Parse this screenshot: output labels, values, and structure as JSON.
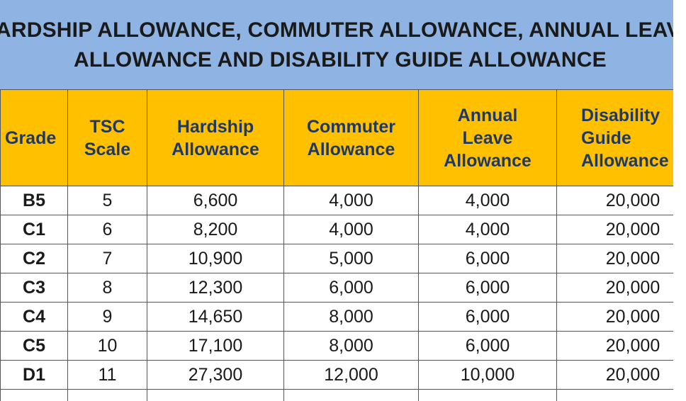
{
  "title": {
    "line1": "ARDSHIP ALLOWANCE, COMMUTER ALLOWANCE, ANNUAL LEAVE",
    "line2": "ALLOWANCE AND DISABILITY GUIDE ALLOWANCE"
  },
  "headers": {
    "grade": "Grade",
    "scale": [
      "TSC",
      "Scale"
    ],
    "hardship": [
      "Hardship",
      "Allowance"
    ],
    "commuter": [
      "Commuter",
      "Allowance"
    ],
    "annual_leave": [
      "Annual",
      "Leave",
      "Allowance"
    ],
    "disability": [
      "Disability",
      "Guide",
      "Allowance"
    ]
  },
  "rows": [
    {
      "grade": "B5",
      "scale": "5",
      "hardship": "6,600",
      "commuter": "4,000",
      "annual_leave": "4,000",
      "disability": "20,000"
    },
    {
      "grade": "C1",
      "scale": "6",
      "hardship": "8,200",
      "commuter": "4,000",
      "annual_leave": "4,000",
      "disability": "20,000"
    },
    {
      "grade": "C2",
      "scale": "7",
      "hardship": "10,900",
      "commuter": "5,000",
      "annual_leave": "6,000",
      "disability": "20,000"
    },
    {
      "grade": "C3",
      "scale": "8",
      "hardship": "12,300",
      "commuter": "6,000",
      "annual_leave": "6,000",
      "disability": "20,000"
    },
    {
      "grade": "C4",
      "scale": "9",
      "hardship": "14,650",
      "commuter": "8,000",
      "annual_leave": "6,000",
      "disability": "20,000"
    },
    {
      "grade": "C5",
      "scale": "10",
      "hardship": "17,100",
      "commuter": "8,000",
      "annual_leave": "6,000",
      "disability": "20,000"
    },
    {
      "grade": "D1",
      "scale": "11",
      "hardship": "27,300",
      "commuter": "12,000",
      "annual_leave": "10,000",
      "disability": "20,000"
    }
  ],
  "colors": {
    "title_band": "#8fb4e3",
    "header_fill": "#ffc000",
    "header_text": "#1f3864"
  }
}
